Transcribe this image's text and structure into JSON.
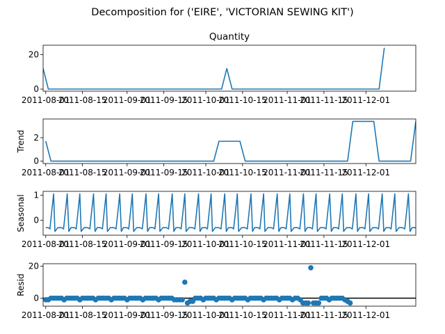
{
  "suptitle": "Decomposition for ('EIRE', 'VICTORIAN SEWING KIT')",
  "colors": {
    "line": "#1f77b4",
    "axis": "#000000",
    "zero_line": "#000000"
  },
  "x_dates": [
    "2011-08-01",
    "2011-08-15",
    "2011-09-01",
    "2011-09-15",
    "2011-10-01",
    "2011-10-15",
    "2011-11-01",
    "2011-11-15",
    "2011-12-01"
  ],
  "chart_data": [
    {
      "type": "line",
      "title": "Quantity",
      "ylabel": "",
      "ylim": [
        -1.2,
        25.5
      ],
      "yticks": [
        0,
        20
      ],
      "x_start": "2011-07-31",
      "x_end": "2011-12-06",
      "x_step_days": 2,
      "values": [
        12,
        0,
        0,
        0,
        0,
        0,
        0,
        0,
        0,
        0,
        0,
        0,
        0,
        0,
        0,
        0,
        0,
        0,
        0,
        0,
        0,
        0,
        0,
        0,
        0,
        0,
        0,
        0,
        0,
        0,
        0,
        0,
        0,
        0,
        0,
        12,
        0,
        0,
        0,
        0,
        0,
        0,
        0,
        0,
        0,
        0,
        0,
        0,
        0,
        0,
        0,
        0,
        0,
        0,
        0,
        0,
        0,
        0,
        0,
        0,
        0,
        0,
        0,
        0,
        0,
        24
      ]
    },
    {
      "type": "line",
      "title": "",
      "ylabel": "Trend",
      "ylim": [
        -0.2,
        3.6
      ],
      "yticks": [
        0,
        2
      ],
      "points": [
        {
          "x": "2011-08-01",
          "y": 1.7
        },
        {
          "x": "2011-08-03",
          "y": 0
        },
        {
          "x": "2011-10-04",
          "y": 0
        },
        {
          "x": "2011-10-06",
          "y": 1.7
        },
        {
          "x": "2011-10-14",
          "y": 1.7
        },
        {
          "x": "2011-10-16",
          "y": 0
        },
        {
          "x": "2011-11-24",
          "y": 0
        },
        {
          "x": "2011-11-26",
          "y": 3.4
        },
        {
          "x": "2011-12-04",
          "y": 3.4
        },
        {
          "x": "2011-12-06",
          "y": 0
        },
        {
          "x": "2011-12-18",
          "y": 0
        },
        {
          "x": "2011-12-20",
          "y": 3.4
        }
      ]
    },
    {
      "type": "line",
      "title": "",
      "ylabel": "Seasonal",
      "ylim": [
        -0.6,
        1.15
      ],
      "yticks": [
        0,
        1
      ],
      "period_days": 10,
      "pattern": [
        {
          "t": 0,
          "y": -0.3
        },
        {
          "t": 1,
          "y": -0.3
        },
        {
          "t": 1.6,
          "y": -0.35
        },
        {
          "t": 2.4,
          "y": 0.45
        },
        {
          "t": 3,
          "y": 1.05
        },
        {
          "t": 3.5,
          "y": -0.45
        },
        {
          "t": 4.6,
          "y": -0.3
        },
        {
          "t": 6,
          "y": -0.3
        },
        {
          "t": 6.8,
          "y": -0.35
        },
        {
          "t": 7.6,
          "y": 0.45
        },
        {
          "t": 8.2,
          "y": 1.05
        },
        {
          "t": 8.8,
          "y": -0.45
        },
        {
          "t": 9.6,
          "y": -0.3
        },
        {
          "t": 10,
          "y": -0.3
        }
      ]
    },
    {
      "type": "scatter",
      "title": "",
      "ylabel": "Resid",
      "ylim": [
        -5,
        21.5
      ],
      "yticks": [
        0,
        20
      ],
      "zero_line": true,
      "x_start": "2011-08-01",
      "x_step_days": 2,
      "values": [
        -1,
        -1,
        0,
        0,
        0,
        0,
        0,
        -1,
        0,
        0,
        0,
        0,
        0,
        -1,
        0,
        0,
        0,
        0,
        0,
        -1,
        0,
        0,
        0,
        0,
        0,
        -1,
        0,
        0,
        0,
        0,
        0,
        -1,
        0,
        0,
        0,
        0,
        0,
        -1,
        0,
        0,
        0,
        0,
        0,
        -1,
        0,
        0,
        0,
        0,
        0,
        -1,
        -1,
        -1,
        -1,
        10,
        -3,
        -2,
        -2,
        0,
        0,
        0,
        -1,
        0,
        0,
        0,
        0,
        -1,
        0,
        0,
        0,
        0,
        0,
        -1,
        0,
        0,
        0,
        0,
        0,
        -1,
        0,
        0,
        0,
        0,
        0,
        -1,
        0,
        0,
        0,
        0,
        0,
        -1,
        0,
        0,
        0,
        0,
        -1,
        0,
        0,
        -1,
        -3,
        -3,
        -3,
        19,
        -3,
        -3,
        -3,
        0,
        0,
        0,
        -1,
        0,
        0,
        0,
        0,
        0,
        -1,
        -2,
        -3
      ]
    }
  ]
}
